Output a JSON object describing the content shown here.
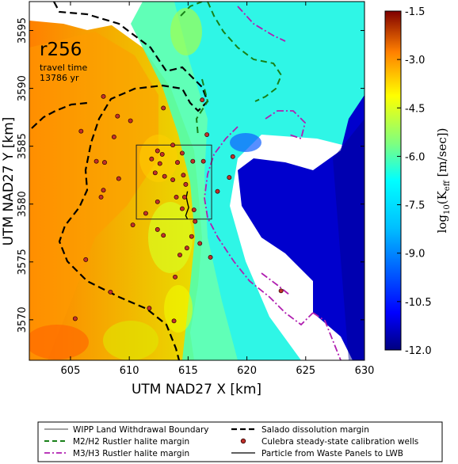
{
  "chart_data": {
    "type": "heatmap",
    "xlabel": "UTM NAD27 X [km]",
    "ylabel": "UTM NAD27 Y [km]",
    "xlim": [
      601.5,
      630
    ],
    "ylim": [
      3566.5,
      3597.5
    ],
    "xticks": [
      "605",
      "610",
      "615",
      "620",
      "625",
      "630"
    ],
    "yticks": [
      "3570",
      "3575",
      "3580",
      "3585",
      "3590",
      "3595"
    ],
    "annotation": {
      "title": "r256",
      "line1": "travel time",
      "line2": "13786 yr"
    },
    "colorbar": {
      "range": [
        -12.0,
        -1.5
      ],
      "ticks": [
        "-1.5",
        "-3.0",
        "-4.5",
        "-6.0",
        "-7.5",
        "-9.0",
        "-10.5",
        "-12.0"
      ],
      "label_prefix": "log",
      "label_sub": "10",
      "label_mid": "(K",
      "label_sub2": "eff",
      "label_suffix": " [m/sec])",
      "colors": [
        "#00007f",
        "#0000ff",
        "#007fff",
        "#00ffff",
        "#7fff7f",
        "#ffff00",
        "#ff7f00",
        "#ff0000",
        "#7f0000"
      ]
    },
    "wipp_boundary": {
      "x": [
        610.6,
        617.0
      ],
      "y": [
        3578.7,
        3585.1
      ]
    },
    "wells": [
      [
        605.9,
        3586.3
      ],
      [
        606.3,
        3575.2
      ],
      [
        605.4,
        3570.1
      ],
      [
        608.4,
        3572.4
      ],
      [
        607.2,
        3583.7
      ],
      [
        607.9,
        3583.6
      ],
      [
        607.8,
        3581.2
      ],
      [
        608.7,
        3585.8
      ],
      [
        607.6,
        3580.6
      ],
      [
        609.1,
        3582.2
      ],
      [
        611.9,
        3583.9
      ],
      [
        612.4,
        3584.6
      ],
      [
        612.6,
        3583.5
      ],
      [
        612.8,
        3584.3
      ],
      [
        612.2,
        3582.7
      ],
      [
        613.0,
        3582.4
      ],
      [
        613.7,
        3582.1
      ],
      [
        614.6,
        3582.5
      ],
      [
        614.1,
        3583.6
      ],
      [
        614.5,
        3584.4
      ],
      [
        615.4,
        3583.7
      ],
      [
        614.0,
        3580.6
      ],
      [
        614.7,
        3580.6
      ],
      [
        614.8,
        3581.7
      ],
      [
        614.5,
        3579.6
      ],
      [
        615.5,
        3579.5
      ],
      [
        615.6,
        3578.5
      ],
      [
        615.3,
        3577.2
      ],
      [
        616.0,
        3576.6
      ],
      [
        614.9,
        3576.2
      ],
      [
        614.3,
        3575.6
      ],
      [
        612.9,
        3577.3
      ],
      [
        612.4,
        3577.8
      ],
      [
        610.3,
        3578.2
      ],
      [
        611.4,
        3579.2
      ],
      [
        612.4,
        3580.2
      ],
      [
        613.9,
        3573.7
      ],
      [
        611.7,
        3571.0
      ],
      [
        613.8,
        3569.9
      ],
      [
        616.9,
        3575.4
      ],
      [
        612.9,
        3588.3
      ],
      [
        616.2,
        3589.0
      ],
      [
        616.6,
        3586.0
      ],
      [
        610.1,
        3587.2
      ],
      [
        609.0,
        3587.6
      ],
      [
        607.8,
        3589.3
      ],
      [
        618.5,
        3582.3
      ],
      [
        618.8,
        3584.1
      ],
      [
        622.9,
        3572.5
      ],
      [
        617.5,
        3581.1
      ],
      [
        616.3,
        3583.7
      ],
      [
        613.7,
        3585.1
      ]
    ],
    "particle_path": {
      "x": [
        614.95,
        614.85,
        614.95,
        615.05,
        614.9,
        614.8,
        614.9,
        614.95
      ],
      "y": [
        3581.1,
        3580.6,
        3580.1,
        3579.7,
        3579.3,
        3579.0,
        3578.8,
        3578.7
      ]
    }
  },
  "legend": {
    "wipp": "WIPP Land Withdrawal Boundary",
    "m2h2": "M2/H2 Rustler halite margin",
    "m3h3": "M3/H3 Rustler halite margin",
    "salado": "Salado dissolution margin",
    "wells": "Culebra steady-state calibration wells",
    "particle": "Particle from Waste Panels to LWB"
  }
}
